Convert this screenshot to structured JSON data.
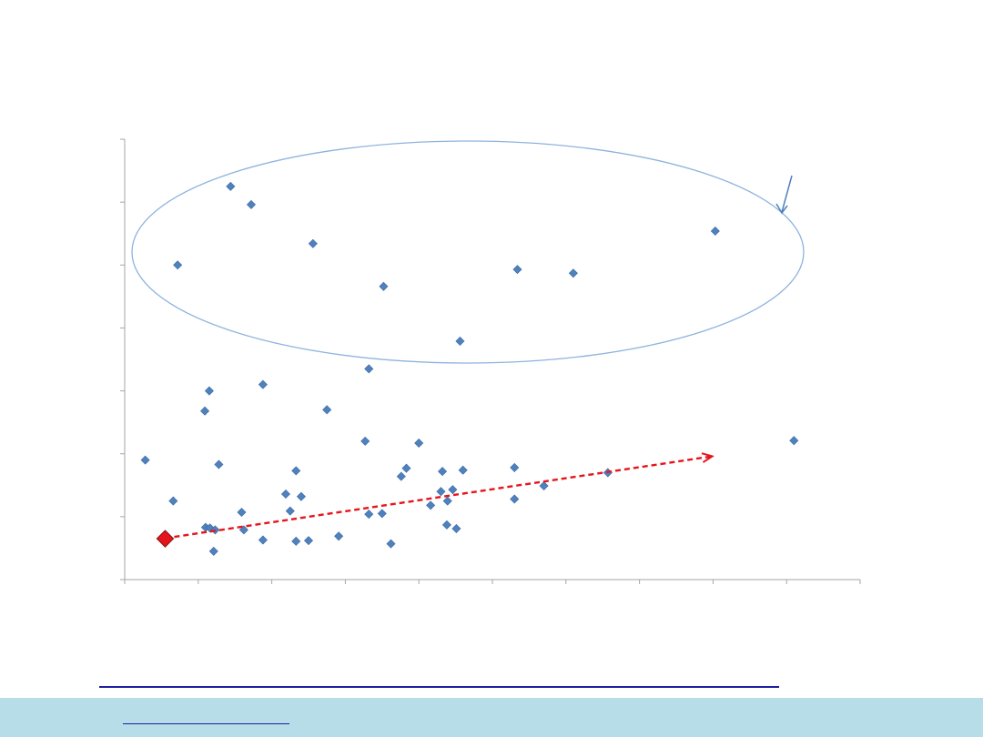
{
  "chart_data": {
    "type": "scatter",
    "title": "",
    "xlabel": "",
    "ylabel": "",
    "xlim": [
      0,
      100
    ],
    "ylim": [
      0,
      70
    ],
    "x_ticks": [
      0,
      10,
      20,
      30,
      40,
      50,
      60,
      70,
      80,
      90,
      100
    ],
    "y_ticks": [
      0,
      10,
      20,
      30,
      40,
      50,
      60,
      70
    ],
    "tick_labels_visible": false,
    "grid": false,
    "legend": "none",
    "series": [
      {
        "marker": "diamond",
        "color": "#4F81BD",
        "points": [
          [
            2.8,
            19.0
          ],
          [
            6.6,
            12.5
          ],
          [
            7.2,
            50.0
          ],
          [
            10.9,
            26.8
          ],
          [
            11.5,
            30.0
          ],
          [
            11.0,
            8.3
          ],
          [
            11.6,
            8.2
          ],
          [
            12.1,
            4.5
          ],
          [
            12.3,
            7.9
          ],
          [
            12.8,
            18.3
          ],
          [
            14.4,
            62.5
          ],
          [
            15.9,
            10.7
          ],
          [
            16.2,
            7.9
          ],
          [
            17.2,
            59.6
          ],
          [
            18.8,
            31.0
          ],
          [
            18.8,
            6.3
          ],
          [
            21.9,
            13.6
          ],
          [
            22.5,
            10.9
          ],
          [
            23.3,
            17.3
          ],
          [
            23.3,
            6.1
          ],
          [
            24.0,
            13.2
          ],
          [
            25.0,
            6.2
          ],
          [
            25.6,
            53.4
          ],
          [
            27.5,
            27.0
          ],
          [
            29.1,
            6.9
          ],
          [
            32.7,
            22.0
          ],
          [
            33.2,
            33.5
          ],
          [
            33.2,
            10.4
          ],
          [
            35.0,
            10.5
          ],
          [
            35.2,
            46.6
          ],
          [
            36.2,
            5.7
          ],
          [
            37.6,
            16.4
          ],
          [
            38.3,
            17.7
          ],
          [
            40.0,
            21.7
          ],
          [
            41.6,
            11.8
          ],
          [
            43.0,
            14.0
          ],
          [
            43.2,
            17.2
          ],
          [
            43.8,
            8.7
          ],
          [
            43.9,
            12.5
          ],
          [
            44.6,
            14.3
          ],
          [
            45.1,
            8.1
          ],
          [
            45.6,
            37.9
          ],
          [
            46.0,
            17.4
          ],
          [
            53.0,
            17.8
          ],
          [
            53.0,
            12.8
          ],
          [
            53.4,
            49.3
          ],
          [
            57.0,
            14.9
          ],
          [
            61.0,
            48.7
          ],
          [
            65.7,
            17.0
          ],
          [
            80.3,
            55.4
          ],
          [
            91.0,
            22.1
          ]
        ]
      },
      {
        "marker": "diamond-large",
        "color": "#E8141C",
        "points": [
          [
            5.5,
            6.5
          ]
        ]
      }
    ],
    "annotations": {
      "trend_arrow": {
        "from": [
          5.5,
          6.5
        ],
        "to": [
          79.9,
          19.6
        ],
        "color": "#E8141C",
        "style": "dashed"
      },
      "outlier_ellipse": {
        "color": "#8EB3DE"
      },
      "pointer_arrow": {
        "color": "#4F81BD"
      }
    },
    "axis_color": "#A6A6A6"
  },
  "footer": {
    "band_color": "#B7DDE8",
    "rule_color": "#1F1FA0",
    "link_color": "#1F1FA0"
  }
}
